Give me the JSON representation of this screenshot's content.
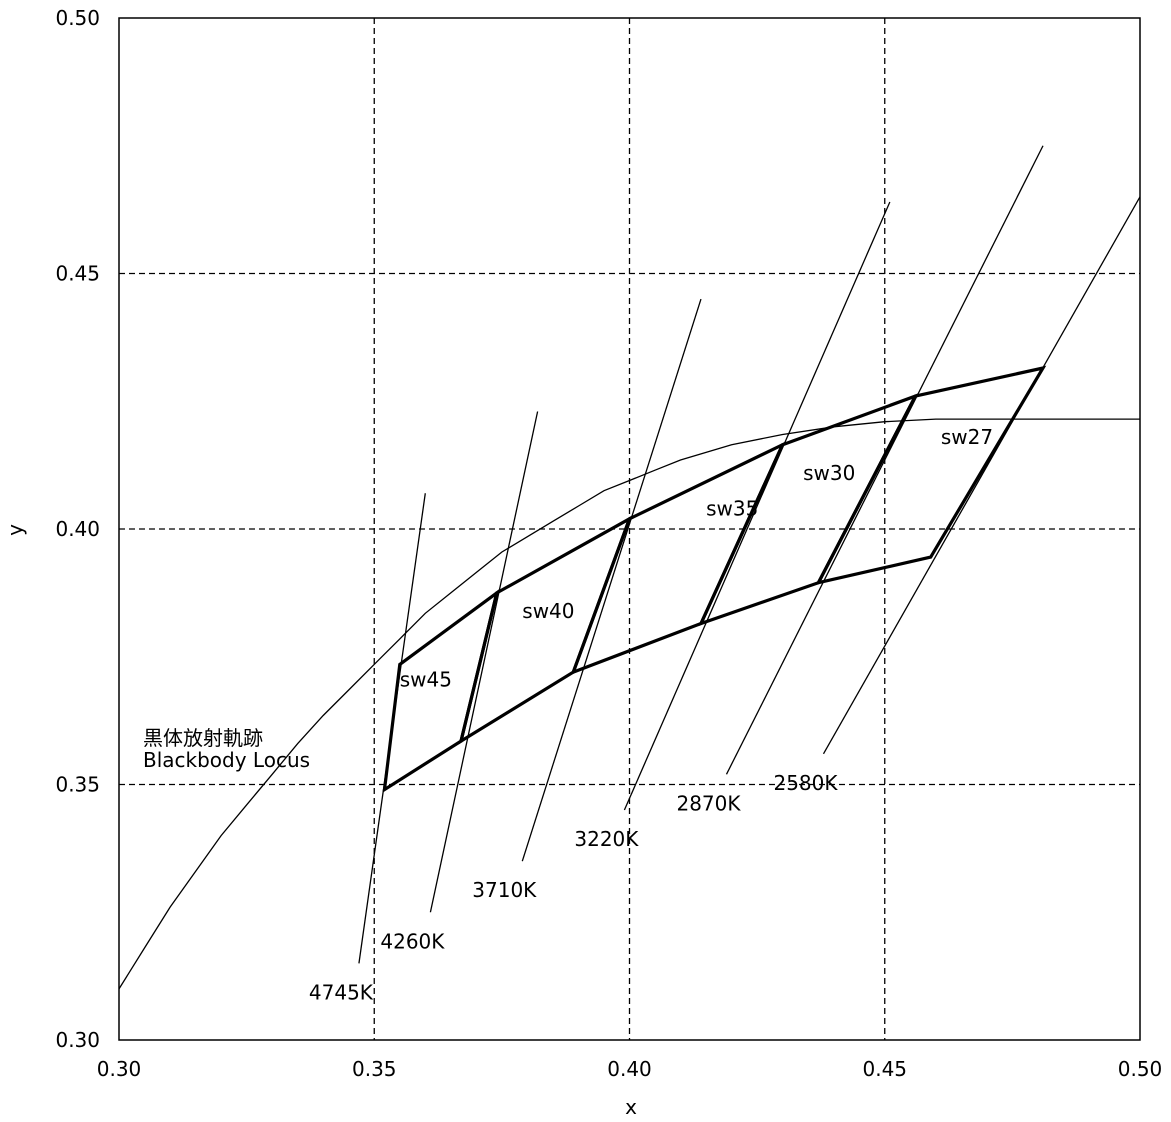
{
  "chart_data": {
    "type": "line",
    "title": "",
    "xlabel": "x",
    "ylabel": "y",
    "xlim": [
      0.3,
      0.5
    ],
    "ylim": [
      0.3,
      0.5
    ],
    "x_ticks": [
      0.3,
      0.35,
      0.4,
      0.45,
      0.5
    ],
    "y_ticks": [
      0.3,
      0.35,
      0.4,
      0.45,
      0.5
    ],
    "x_tick_labels": [
      "0.30",
      "0.35",
      "0.40",
      "0.45",
      "0.50"
    ],
    "y_tick_labels": [
      "0.30",
      "0.35",
      "0.40",
      "0.45",
      "0.50"
    ],
    "grid": "dashed at ticks",
    "legend": "none",
    "blackbody_locus": {
      "label_ja": "黒体放射軌跡",
      "label_en": "Blackbody Locus",
      "points": [
        [
          0.3,
          0.31
        ],
        [
          0.305,
          0.318
        ],
        [
          0.31,
          0.326
        ],
        [
          0.315,
          0.333
        ],
        [
          0.32,
          0.34
        ],
        [
          0.325,
          0.346
        ],
        [
          0.33,
          0.352
        ],
        [
          0.335,
          0.358
        ],
        [
          0.34,
          0.3635
        ],
        [
          0.345,
          0.3685
        ],
        [
          0.35,
          0.3735
        ],
        [
          0.355,
          0.3785
        ],
        [
          0.36,
          0.3835
        ],
        [
          0.365,
          0.3875
        ],
        [
          0.37,
          0.3915
        ],
        [
          0.375,
          0.3955
        ],
        [
          0.38,
          0.3985
        ],
        [
          0.385,
          0.4015
        ],
        [
          0.39,
          0.4045
        ],
        [
          0.395,
          0.4075
        ],
        [
          0.4,
          0.4095
        ],
        [
          0.405,
          0.4115
        ],
        [
          0.41,
          0.4135
        ],
        [
          0.42,
          0.4165
        ],
        [
          0.43,
          0.4185
        ],
        [
          0.44,
          0.42
        ],
        [
          0.45,
          0.421
        ],
        [
          0.46,
          0.4215
        ],
        [
          0.47,
          0.4215
        ],
        [
          0.48,
          0.4215
        ],
        [
          0.49,
          0.4215
        ],
        [
          0.5,
          0.4215
        ]
      ]
    },
    "isotherm_lines": [
      {
        "label": "4745K",
        "start": [
          0.347,
          0.315
        ],
        "end": [
          0.36,
          0.407
        ]
      },
      {
        "label": "4260K",
        "start": [
          0.361,
          0.325
        ],
        "end": [
          0.382,
          0.423
        ]
      },
      {
        "label": "3710K",
        "start": [
          0.379,
          0.335
        ],
        "end": [
          0.414,
          0.445
        ]
      },
      {
        "label": "3220K",
        "start": [
          0.399,
          0.345
        ],
        "end": [
          0.451,
          0.464
        ]
      },
      {
        "label": "2870K",
        "start": [
          0.419,
          0.352
        ],
        "end": [
          0.481,
          0.475
        ]
      },
      {
        "label": "2580K",
        "start": [
          0.438,
          0.356
        ],
        "end": [
          0.5,
          0.465
        ]
      }
    ],
    "regions": [
      {
        "name": "sw45",
        "label_at": [
          0.355,
          0.3705
        ],
        "polygon": [
          [
            0.355,
            0.3735
          ],
          [
            0.374,
            0.3875
          ],
          [
            0.367,
            0.3585
          ],
          [
            0.352,
            0.349
          ]
        ]
      },
      {
        "name": "sw40",
        "label_at": [
          0.379,
          0.384
        ],
        "polygon": [
          [
            0.374,
            0.3875
          ],
          [
            0.4,
            0.402
          ],
          [
            0.389,
            0.372
          ],
          [
            0.367,
            0.3585
          ]
        ]
      },
      {
        "name": "sw35",
        "label_at": [
          0.415,
          0.404
        ],
        "polygon": [
          [
            0.4,
            0.402
          ],
          [
            0.43,
            0.4165
          ],
          [
            0.414,
            0.3815
          ],
          [
            0.389,
            0.372
          ]
        ]
      },
      {
        "name": "sw30",
        "label_at": [
          0.434,
          0.411
        ],
        "polygon": [
          [
            0.43,
            0.4165
          ],
          [
            0.456,
            0.426
          ],
          [
            0.437,
            0.3895
          ],
          [
            0.414,
            0.3815
          ]
        ]
      },
      {
        "name": "sw27",
        "label_at": [
          0.461,
          0.418
        ],
        "polygon": [
          [
            0.456,
            0.426
          ],
          [
            0.481,
            0.4315
          ],
          [
            0.459,
            0.3945
          ],
          [
            0.437,
            0.3895
          ]
        ]
      }
    ]
  }
}
